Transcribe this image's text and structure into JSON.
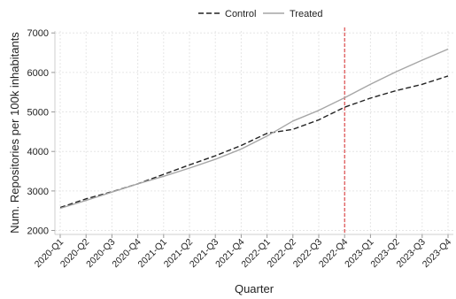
{
  "chart_data": {
    "type": "line",
    "title": "",
    "xlabel": "Quarter",
    "ylabel": "Num. Repositories per 100k inhabitants",
    "categories": [
      "2020-Q1",
      "2020-Q2",
      "2020-Q3",
      "2020-Q4",
      "2021-Q1",
      "2021-Q2",
      "2021-Q3",
      "2021-Q4",
      "2022-Q1",
      "2022-Q2",
      "2022-Q3",
      "2022-Q4",
      "2023-Q1",
      "2023-Q2",
      "2023-Q3",
      "2023-Q4"
    ],
    "ylim": [
      1900,
      7050
    ],
    "yticks": [
      2000,
      3000,
      4000,
      5000,
      6000,
      7000
    ],
    "grid": true,
    "legend_position": "top-center",
    "series": [
      {
        "name": "Control",
        "style": "dashed",
        "color": "#222222",
        "values": [
          2580,
          2800,
          2980,
          3180,
          3420,
          3660,
          3890,
          4150,
          4460,
          4560,
          4800,
          5120,
          5350,
          5540,
          5700,
          5910
        ]
      },
      {
        "name": "Treated",
        "style": "solid",
        "color": "#a6a6a6",
        "values": [
          2560,
          2760,
          2970,
          3180,
          3370,
          3580,
          3800,
          4060,
          4390,
          4770,
          5040,
          5360,
          5700,
          6020,
          6310,
          6590
        ]
      }
    ],
    "annotations": [
      {
        "type": "vline",
        "x": "2022-Q4",
        "color": "#d62728",
        "style": "dashed"
      }
    ]
  }
}
